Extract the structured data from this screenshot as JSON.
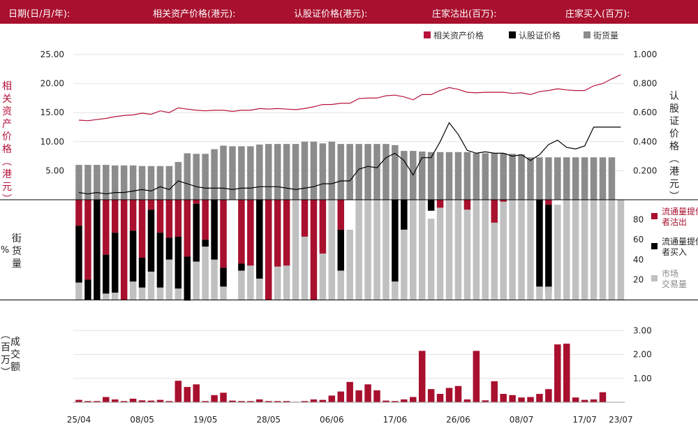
{
  "header": {
    "date_label": "日期(日/月/年):",
    "underlying_label": "相关资产价格(港元):",
    "warrant_label": "认股证价格(港元):",
    "provider_sell_label": "庄家沽出(百万):",
    "provider_buy_label": "庄家买入(百万):"
  },
  "colors": {
    "brand": "#a8102e",
    "underlying_line": "#b5123b",
    "warrant_line": "#000000",
    "outstanding_bar": "#8c8c8c",
    "provider_sell": "#a8102e",
    "provider_buy": "#000000",
    "market_trade": "#c0c0c0",
    "turnover_bar": "#a8102e"
  },
  "chart_data": {
    "x_ticks": [
      {
        "i": 0,
        "label": "25/04"
      },
      {
        "i": 7,
        "label": "08/05"
      },
      {
        "i": 14,
        "label": "19/05"
      },
      {
        "i": 21,
        "label": "28/05"
      },
      {
        "i": 28,
        "label": "06/06"
      },
      {
        "i": 35,
        "label": "17/06"
      },
      {
        "i": 42,
        "label": "26/06"
      },
      {
        "i": 49,
        "label": "08/07"
      },
      {
        "i": 56,
        "label": "17/07"
      },
      {
        "i": 60,
        "label": "23/07"
      }
    ],
    "price_panel": {
      "legend": [
        "相关资产价格",
        "认股证价格",
        "街货量"
      ],
      "left_axis_label": "相关资产价格(港元)",
      "right_axis_label": "认股证价格(港元)",
      "left_ticks": [
        "5.00",
        "10.00",
        "15.00",
        "20.00",
        "25.00"
      ],
      "right_ticks": [
        "0.200",
        "0.400",
        "0.600",
        "0.800",
        "1.000"
      ],
      "left_ylim": [
        0,
        25
      ],
      "right_ylim": [
        0,
        1.0
      ],
      "underlying_price": [
        13.7,
        13.6,
        13.8,
        14.0,
        14.3,
        14.5,
        14.6,
        14.9,
        14.7,
        15.3,
        15.0,
        15.8,
        15.6,
        15.4,
        15.3,
        15.4,
        15.4,
        15.2,
        15.4,
        15.4,
        15.7,
        15.6,
        15.7,
        15.6,
        15.5,
        15.7,
        16.0,
        16.4,
        16.4,
        16.6,
        16.6,
        17.4,
        17.5,
        17.5,
        17.9,
        18.0,
        17.7,
        17.2,
        18.1,
        18.1,
        18.8,
        19.3,
        19.0,
        18.5,
        18.4,
        18.5,
        18.5,
        18.5,
        18.3,
        18.4,
        18.1,
        18.6,
        18.8,
        19.1,
        18.9,
        18.8,
        18.8,
        19.6,
        20.0,
        20.8,
        21.5
      ],
      "warrant_price": [
        0.05,
        0.04,
        0.05,
        0.04,
        0.05,
        0.05,
        0.06,
        0.07,
        0.06,
        0.09,
        0.07,
        0.13,
        0.11,
        0.09,
        0.08,
        0.08,
        0.08,
        0.07,
        0.08,
        0.08,
        0.09,
        0.09,
        0.09,
        0.08,
        0.07,
        0.08,
        0.09,
        0.11,
        0.11,
        0.13,
        0.13,
        0.21,
        0.23,
        0.22,
        0.29,
        0.32,
        0.27,
        0.17,
        0.29,
        0.29,
        0.4,
        0.53,
        0.45,
        0.34,
        0.32,
        0.33,
        0.32,
        0.32,
        0.3,
        0.31,
        0.27,
        0.31,
        0.38,
        0.41,
        0.36,
        0.35,
        0.37,
        0.5,
        0.5,
        0.5,
        0.5
      ],
      "outstanding": [
        6.0,
        6.0,
        6.0,
        6.0,
        5.9,
        5.9,
        5.9,
        5.8,
        5.8,
        5.8,
        5.8,
        6.5,
        8.0,
        7.9,
        7.9,
        8.7,
        9.3,
        9.2,
        9.2,
        9.2,
        9.5,
        9.6,
        9.6,
        9.6,
        9.6,
        10.0,
        10.0,
        9.7,
        10.0,
        9.6,
        9.6,
        9.6,
        9.6,
        9.6,
        9.6,
        9.4,
        8.4,
        8.4,
        8.3,
        8.2,
        8.2,
        8.2,
        8.2,
        8.2,
        8.0,
        8.0,
        8.0,
        8.0,
        7.9,
        7.8,
        7.3,
        7.3,
        7.3,
        7.3,
        7.3,
        7.3,
        7.3,
        7.3,
        7.3,
        7.3,
        null
      ]
    },
    "share_panel": {
      "axis_label": "街货量(%)",
      "ticks": [
        "20",
        "40",
        "60",
        "80"
      ],
      "ylim": [
        0,
        100
      ],
      "legend": [
        "流通量提供者沽出",
        "流通量提供者买入",
        "市场交易量"
      ],
      "sell": [
        26,
        80,
        0,
        55,
        33,
        100,
        31,
        58,
        10,
        33,
        38,
        37,
        57,
        4,
        40,
        0,
        68,
        0,
        64,
        66,
        0,
        100,
        67,
        66,
        0,
        37,
        100,
        54,
        0,
        30,
        0,
        0,
        0,
        0,
        0,
        0,
        0,
        0,
        0,
        0,
        8,
        0,
        0,
        10,
        0,
        0,
        23,
        2,
        0,
        0,
        0,
        0,
        5,
        0,
        0,
        0,
        0,
        0,
        0,
        0,
        0
      ],
      "buy": [
        57,
        20,
        100,
        39,
        60,
        0,
        51,
        30,
        62,
        55,
        22,
        52,
        44,
        58,
        7,
        60,
        19,
        0,
        7,
        0,
        79,
        0,
        0,
        0,
        0,
        0,
        0,
        0,
        0,
        41,
        0,
        0,
        0,
        0,
        0,
        82,
        30,
        0,
        0,
        11,
        0,
        0,
        0,
        0,
        0,
        0,
        0,
        0,
        0,
        0,
        0,
        87,
        87,
        0,
        0,
        0,
        0,
        0,
        0,
        0,
        0
      ],
      "market": [
        17,
        0,
        0,
        6,
        7,
        0,
        18,
        12,
        28,
        12,
        40,
        11,
        0,
        38,
        53,
        40,
        13,
        0,
        29,
        34,
        21,
        0,
        33,
        34,
        100,
        63,
        0,
        46,
        100,
        29,
        70,
        100,
        100,
        100,
        100,
        18,
        70,
        100,
        100,
        81,
        92,
        100,
        100,
        90,
        100,
        100,
        77,
        98,
        100,
        100,
        100,
        13,
        13,
        95,
        100,
        100,
        100,
        100,
        100,
        100,
        100
      ]
    },
    "turnover_panel": {
      "axis_label": "成交额(百万)",
      "ticks": [
        "1.00",
        "2.00",
        "3.00"
      ],
      "ylim": [
        0,
        3.3
      ],
      "turnover": [
        0.1,
        0.05,
        0.05,
        0.22,
        0.12,
        0.05,
        0.15,
        0.08,
        0.07,
        0.1,
        0.05,
        0.9,
        0.64,
        0.75,
        0.05,
        0.3,
        0.4,
        0.07,
        0.05,
        0.05,
        0.12,
        0.05,
        0.05,
        0.05,
        0.02,
        0.05,
        0.12,
        0.1,
        0.28,
        0.45,
        0.85,
        0.5,
        0.75,
        0.5,
        0.07,
        0.05,
        0.12,
        0.22,
        2.15,
        0.55,
        0.35,
        0.6,
        0.68,
        0.12,
        2.15,
        0.08,
        0.88,
        0.35,
        0.3,
        0.2,
        0.22,
        0.35,
        0.55,
        2.42,
        2.45,
        0.2,
        0.1,
        0.12,
        0.42,
        0.0,
        0.0
      ]
    }
  }
}
